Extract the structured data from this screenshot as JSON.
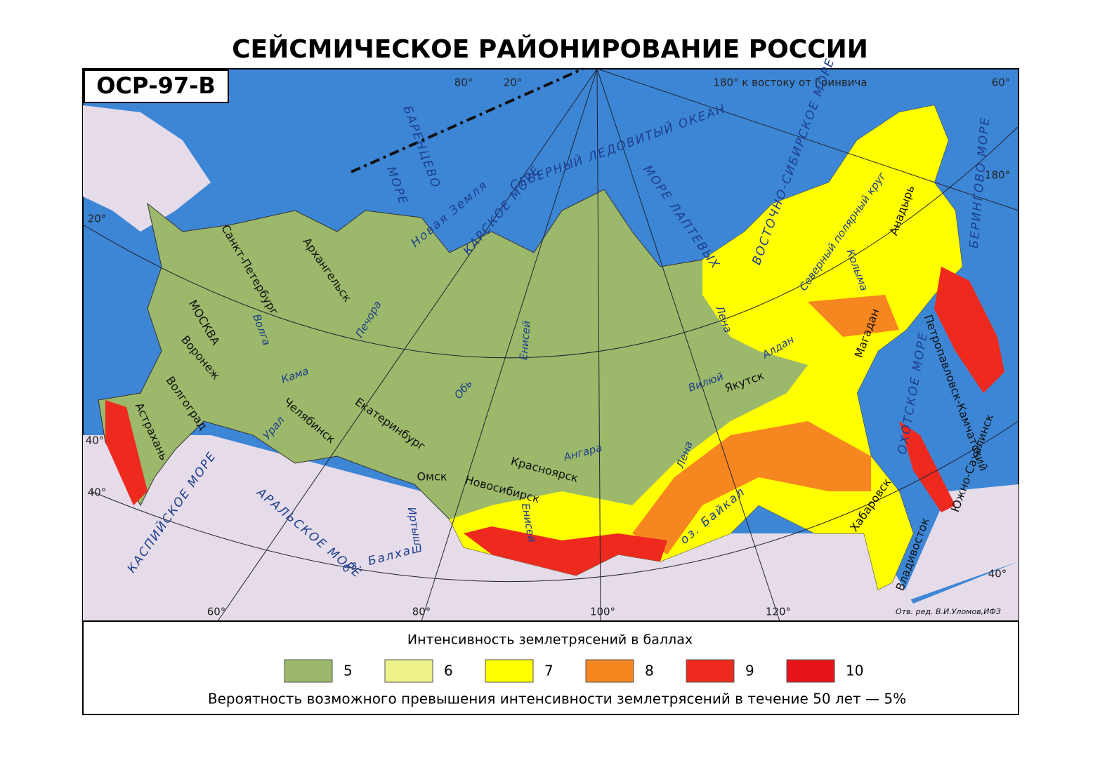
{
  "header": {
    "title": "СЕЙСМИЧЕСКОЕ РАЙОНИРОВАНИЕ РОССИИ",
    "badge": "ОСР-97-В"
  },
  "map": {
    "grid_labels": [
      "180° к востоку от Гринвича",
      "80°",
      "20°",
      "60°",
      "180°",
      "20°",
      "40°",
      "40°",
      "60°",
      "80°",
      "100°",
      "120°",
      "40°"
    ],
    "water_labels": [
      "СЕВЕРНЫЙ ЛЕДОВИТЫЙ ОКЕАН",
      "БАРЕНЦЕВО",
      "МОРЕ",
      "КАРСКОЕ МОРЕ",
      "МОРЕ ЛАПТЕВЫХ",
      "ВОСТОЧНО-СИБИРСКОЕ МОРЕ",
      "БЕРИНГОВО МОРЕ",
      "ОХОТСКОЕ МОРЕ",
      "КАСПИЙСКОЕ МОРЕ",
      "АРАЛЬСКОЕ МОРЕ",
      "оз. Балхаш",
      "оз. Байкал",
      "Новая Земля"
    ],
    "cities": [
      "Санкт-Петербург",
      "Архангельск",
      "МОСКВА",
      "Воронеж",
      "Волгоград",
      "Астрахань",
      "Челябинск",
      "Екатеринбург",
      "Омск",
      "Новосибирск",
      "Красноярск",
      "Якутск",
      "Магадан",
      "Анадырь",
      "Петропавловск-Камчатский",
      "Хабаровск",
      "Южно-Сахалинск",
      "Владивосток"
    ],
    "rivers": [
      "Волга",
      "Печора",
      "Кама",
      "Урал",
      "Обь",
      "Енисей",
      "Ангара",
      "Лена",
      "Лена",
      "Вилюй",
      "Алдан",
      "Колыма",
      "Иртыш",
      "Енисей",
      "Северный полярный круг"
    ],
    "credit": "Отв. ред. В.И.Уломов,ИФЗ"
  },
  "legend": {
    "title": "Интенсивность землетрясений в баллах",
    "items": [
      {
        "label": "5",
        "color": "#9cb86a"
      },
      {
        "label": "6",
        "color": "#eef08a"
      },
      {
        "label": "7",
        "color": "#ffff00"
      },
      {
        "label": "8",
        "color": "#f6861f"
      },
      {
        "label": "9",
        "color": "#ee2a1e"
      },
      {
        "label": "10",
        "color": "#e8141c"
      }
    ],
    "note": "Вероятность возможного превышения интенсивности землетрясений в течение 50 лет — 5%"
  }
}
